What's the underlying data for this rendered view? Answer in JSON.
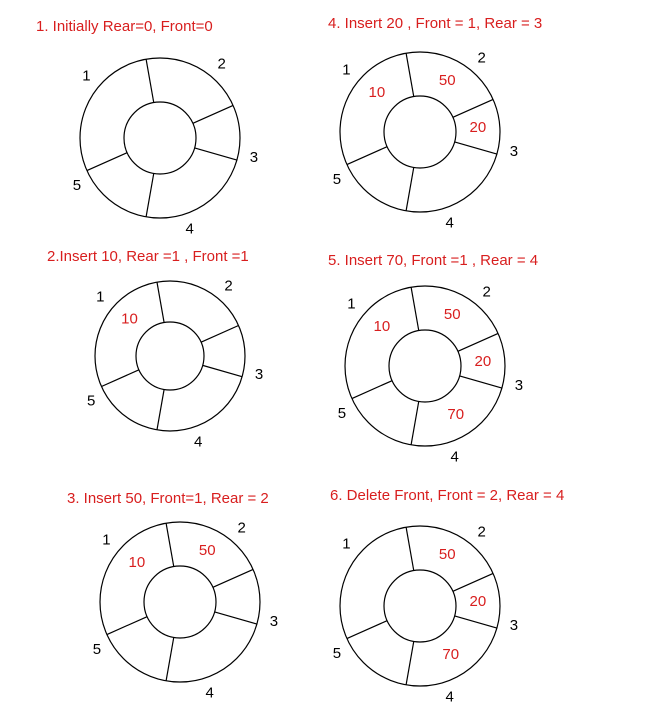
{
  "colors": {
    "title": "#d81e1e",
    "value": "#d81e1e",
    "line": "#000000",
    "slot_number": "#000000"
  },
  "slot_numbers": [
    "1",
    "2",
    "3",
    "4",
    "5"
  ],
  "steps": [
    {
      "title": "1. Initially Rear=0, Front=0",
      "values": [
        "",
        "",
        "",
        "",
        ""
      ]
    },
    {
      "title": "2.Insert 10, Rear =1 , Front =1",
      "values": [
        "10",
        "",
        "",
        "",
        ""
      ]
    },
    {
      "title": "3. Insert 50, Front=1, Rear = 2",
      "values": [
        "10",
        "50",
        "",
        "",
        ""
      ]
    },
    {
      "title": "4. Insert 20 , Front = 1, Rear = 3",
      "values": [
        "10",
        "50",
        "20",
        "",
        ""
      ]
    },
    {
      "title": "5. Insert 70, Front =1 , Rear = 4",
      "values": [
        "10",
        "50",
        "20",
        "70",
        ""
      ]
    },
    {
      "title": "6. Delete Front, Front = 2, Rear = 4",
      "values": [
        "",
        "50",
        "20",
        "70",
        ""
      ]
    }
  ]
}
